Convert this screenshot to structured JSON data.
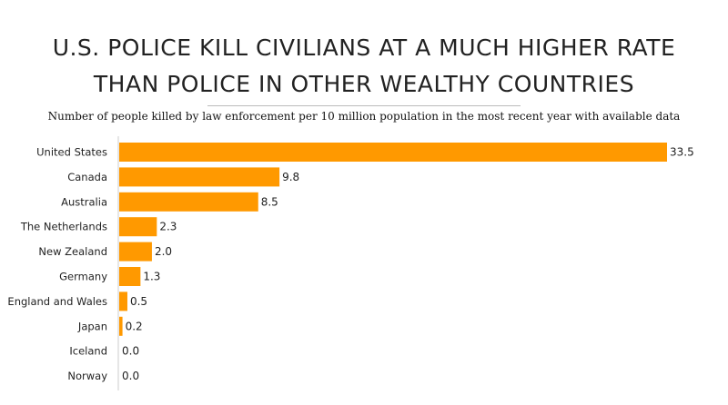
{
  "header": {
    "title_line1": "U.S. POLICE KILL CIVILIANS AT A MUCH HIGHER RATE",
    "title_line2": "THAN POLICE IN OTHER WEALTHY COUNTRIES",
    "subtitle": "Number of people killed by law enforcement per 10 million population in the most recent year with available data"
  },
  "chart_data": {
    "type": "bar",
    "orientation": "horizontal",
    "title": "U.S. POLICE KILL CIVILIANS AT A MUCH HIGHER RATE THAN POLICE IN OTHER WEALTHY COUNTRIES",
    "subtitle": "Number of people killed by law enforcement per 10 million population in the most recent year with available data",
    "categories": [
      "United States",
      "Canada",
      "Australia",
      "The Netherlands",
      "New Zealand",
      "Germany",
      "England and Wales",
      "Japan",
      "Iceland",
      "Norway"
    ],
    "values": [
      33.5,
      9.8,
      8.5,
      2.3,
      2.0,
      1.3,
      0.5,
      0.2,
      0.0,
      0.0
    ],
    "labels": [
      "33.5",
      "9.8",
      "8.5",
      "2.3",
      "2.0",
      "1.3",
      "0.5",
      "0.2",
      "0.0",
      "0.0"
    ],
    "xlim": [
      0,
      33.5
    ],
    "grid": false,
    "bar_color": "#FF9900"
  }
}
